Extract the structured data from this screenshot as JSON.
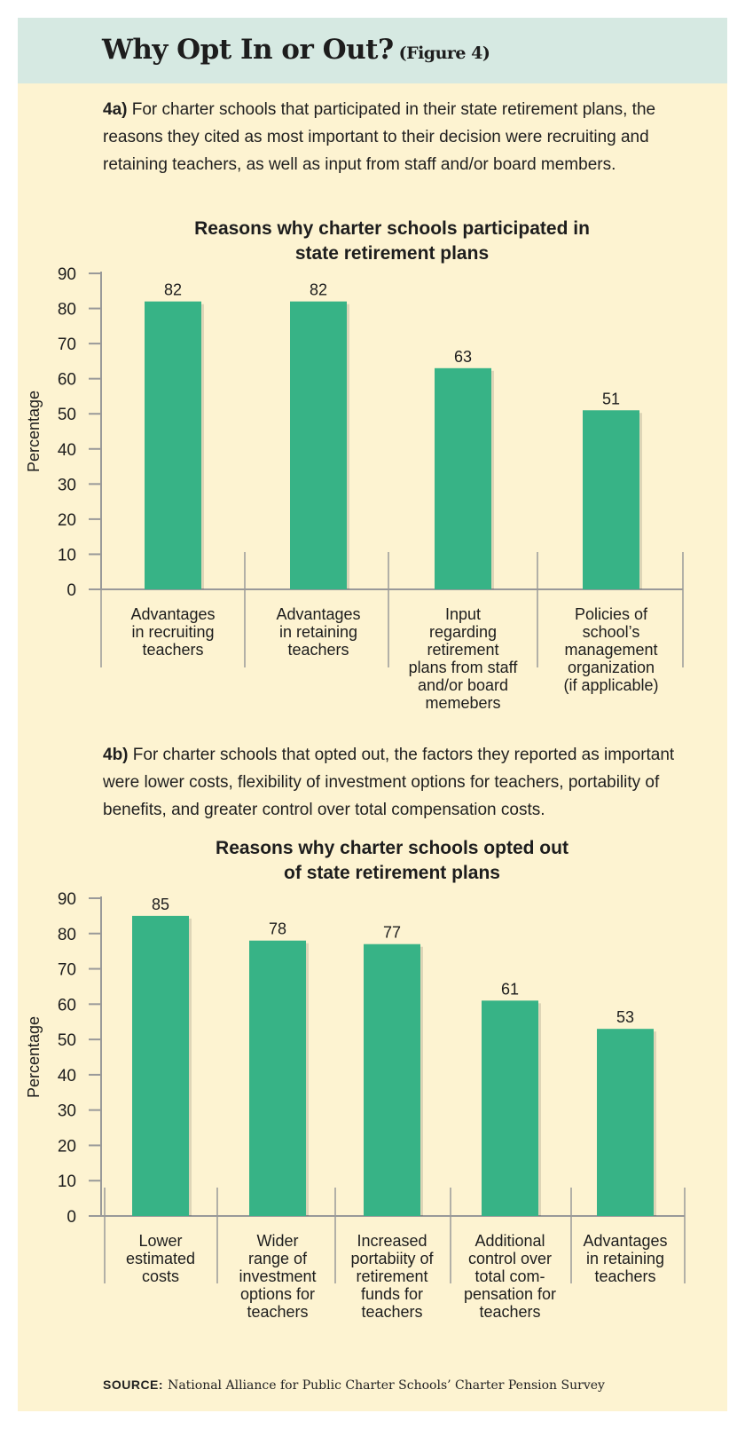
{
  "header": {
    "title": "Why Opt In or Out?",
    "figure_tag": "(Figure 4)"
  },
  "intro_a": {
    "label": "4a)",
    "text": "For charter schools that participated in their state retirement plans, the reasons they cited as most important to their decision were recruiting and retaining teachers, as well as input from staff and/or board members."
  },
  "intro_b": {
    "label": "4b)",
    "text": "For charter schools that opted out, the factors they reported as important were lower costs, flexibility of investment options for teachers, portability of benefits, and greater control over total compensation costs."
  },
  "source": {
    "label": "SOURCE:",
    "text": "National Alliance for Public Charter Schools’ Charter Pension Survey"
  },
  "colors": {
    "bar": "#37b386",
    "axis": "#999999",
    "text": "#1d1d1d"
  },
  "chart_data": [
    {
      "type": "bar",
      "title": [
        "Reasons why charter schools participated in",
        "state retirement plans"
      ],
      "ylabel": "Percentage",
      "xlabel": "",
      "ylim": [
        0,
        90
      ],
      "yticks": [
        0,
        10,
        20,
        30,
        40,
        50,
        60,
        70,
        80,
        90
      ],
      "categories": [
        [
          "Advantages",
          "in recruiting",
          "teachers"
        ],
        [
          "Advantages",
          "in retaining",
          "teachers"
        ],
        [
          "Input",
          "regarding",
          "retirement",
          "plans from staff",
          "and/or board",
          "memebers"
        ],
        [
          "Policies of",
          "school’s",
          "management",
          "organization",
          "(if applicable)"
        ]
      ],
      "values": [
        82,
        82,
        63,
        51
      ]
    },
    {
      "type": "bar",
      "title": [
        "Reasons why charter schools opted out",
        "of state retirement plans"
      ],
      "ylabel": "Percentage",
      "xlabel": "",
      "ylim": [
        0,
        90
      ],
      "yticks": [
        0,
        10,
        20,
        30,
        40,
        50,
        60,
        70,
        80,
        90
      ],
      "categories": [
        [
          "Lower",
          "estimated",
          "costs"
        ],
        [
          "Wider",
          "range of",
          "investment",
          "options for",
          "teachers"
        ],
        [
          "Increased",
          "portabiity of",
          "retirement",
          "funds for",
          "teachers"
        ],
        [
          "Additional",
          "control over",
          "total com-",
          "pensation for",
          "teachers"
        ],
        [
          "Advantages",
          "in retaining",
          "teachers"
        ]
      ],
      "values": [
        85,
        78,
        77,
        61,
        53
      ]
    }
  ]
}
